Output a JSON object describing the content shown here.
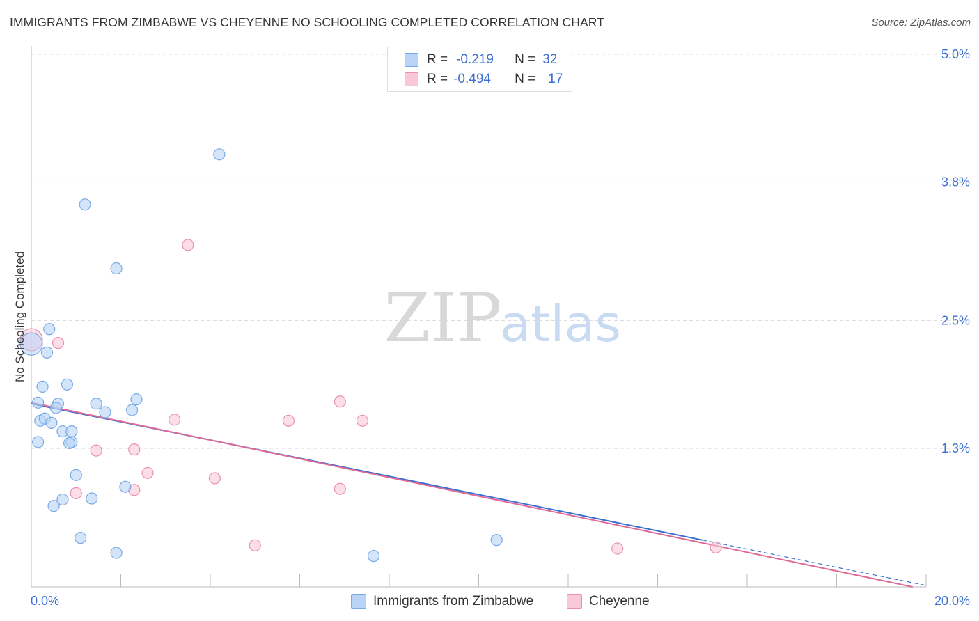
{
  "title": "IMMIGRANTS FROM ZIMBABWE VS CHEYENNE NO SCHOOLING COMPLETED CORRELATION CHART",
  "source": "Source: ZipAtlas.com",
  "watermark": {
    "zip": "ZIP",
    "atlas": "atlas"
  },
  "legend": {
    "r_label": "R =",
    "n_label": "N =",
    "rows": [
      {
        "r": "-0.219",
        "n": "32"
      },
      {
        "r": "-0.494",
        "n": "17"
      }
    ]
  },
  "bottom_legend": [
    "Immigrants from Zimbabwe",
    "Cheyenne"
  ],
  "colors": {
    "blue_fill": "#b8d3f5",
    "blue_stroke": "#7aaae6",
    "blue_line": "#3b6fd4",
    "pink_fill": "#f8c8d8",
    "pink_stroke": "#eb8fb0",
    "pink_line": "#e06a96",
    "axis_label": "#3b6fd4",
    "grid": "#dddddd"
  },
  "chart_data": {
    "type": "scatter",
    "title": "IMMIGRANTS FROM ZIMBABWE VS CHEYENNE NO SCHOOLING COMPLETED CORRELATION CHART",
    "xlabel": "",
    "ylabel": "No Schooling Completed",
    "xlim": [
      0,
      20
    ],
    "ylim": [
      0,
      5.0
    ],
    "x_tick_labels": [
      "0.0%",
      "20.0%"
    ],
    "y_ticks": [
      1.3,
      2.5,
      3.8,
      5.0
    ],
    "y_tick_labels": [
      "1.3%",
      "2.5%",
      "3.8%",
      "5.0%"
    ],
    "grid": true,
    "legend_position": "top-center",
    "series": [
      {
        "name": "Immigrants from Zimbabwe",
        "r": -0.219,
        "n": 32,
        "points": [
          [
            0.0,
            2.28
          ],
          [
            0.15,
            1.73
          ],
          [
            0.25,
            1.88
          ],
          [
            0.4,
            2.42
          ],
          [
            0.35,
            2.2
          ],
          [
            0.2,
            1.56
          ],
          [
            0.3,
            1.58
          ],
          [
            0.45,
            1.54
          ],
          [
            0.6,
            1.72
          ],
          [
            0.55,
            1.68
          ],
          [
            0.15,
            1.36
          ],
          [
            0.7,
            1.46
          ],
          [
            0.8,
            1.9
          ],
          [
            0.9,
            1.46
          ],
          [
            0.9,
            1.36
          ],
          [
            0.85,
            1.35
          ],
          [
            1.0,
            1.05
          ],
          [
            1.45,
            1.72
          ],
          [
            1.65,
            1.64
          ],
          [
            2.25,
            1.66
          ],
          [
            2.35,
            1.76
          ],
          [
            2.1,
            0.94
          ],
          [
            0.5,
            0.76
          ],
          [
            0.7,
            0.82
          ],
          [
            1.35,
            0.83
          ],
          [
            1.1,
            0.46
          ],
          [
            1.9,
            0.32
          ],
          [
            1.9,
            2.99
          ],
          [
            1.2,
            3.59
          ],
          [
            4.2,
            4.06
          ],
          [
            7.65,
            0.29
          ],
          [
            10.4,
            0.44
          ]
        ],
        "trend": {
          "x0": 0.0,
          "y0": 1.72,
          "x1": 15.0,
          "y1": 0.44,
          "dash_to_x": 20.0
        }
      },
      {
        "name": "Cheyenne",
        "r": -0.494,
        "n": 17,
        "points": [
          [
            0.0,
            2.32
          ],
          [
            0.6,
            2.29
          ],
          [
            3.5,
            3.21
          ],
          [
            5.75,
            1.56
          ],
          [
            6.9,
            1.74
          ],
          [
            7.4,
            1.56
          ],
          [
            3.2,
            1.57
          ],
          [
            2.3,
            1.29
          ],
          [
            1.45,
            1.28
          ],
          [
            2.6,
            1.07
          ],
          [
            4.1,
            1.02
          ],
          [
            5.0,
            0.39
          ],
          [
            1.0,
            0.88
          ],
          [
            2.3,
            0.91
          ],
          [
            6.9,
            0.92
          ],
          [
            13.1,
            0.36
          ],
          [
            15.3,
            0.37
          ]
        ],
        "trend": {
          "x0": 0.0,
          "y0": 1.73,
          "x1": 19.7,
          "y1": 0.0
        }
      }
    ]
  }
}
